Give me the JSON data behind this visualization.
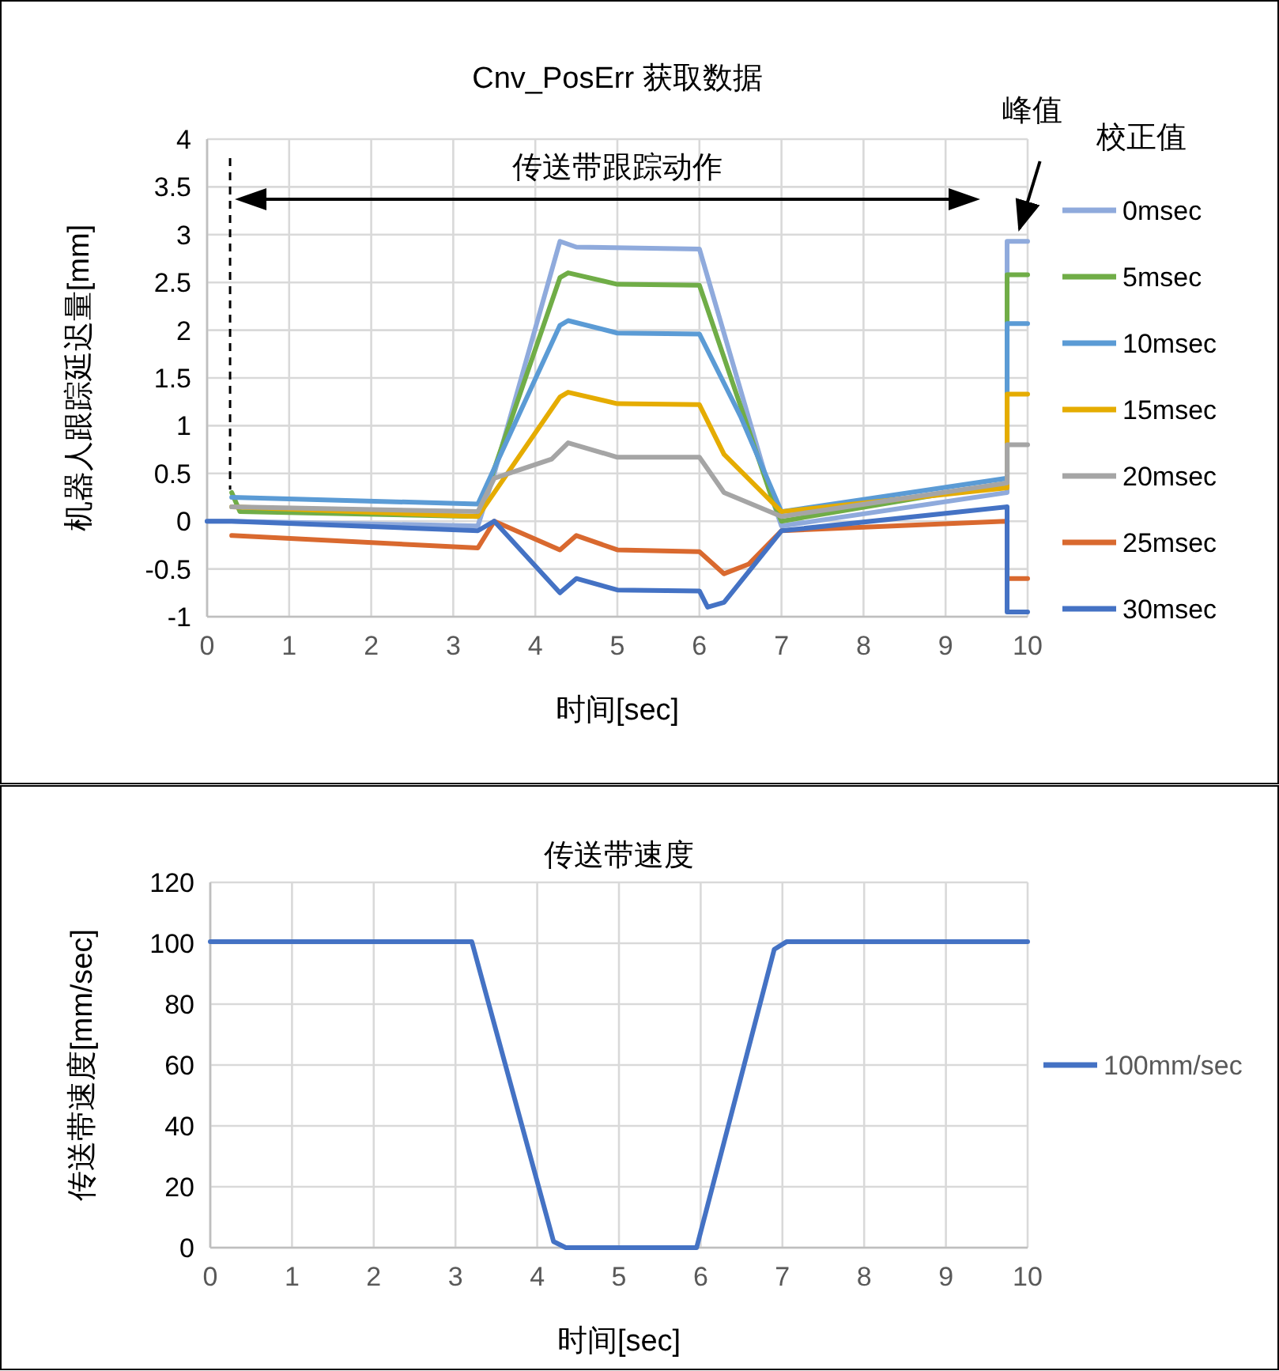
{
  "chart_data": [
    {
      "type": "line",
      "title": "Cnv_PosErr 获取数据",
      "xlabel": "时间[sec]",
      "ylabel": "机器人跟踪延迟量[mm]",
      "legend_title": "校正值",
      "legend": "right",
      "grid": true,
      "xlim": [
        0,
        10
      ],
      "xticks": [
        0,
        1,
        2,
        3,
        4,
        5,
        6,
        7,
        8,
        9,
        10
      ],
      "ylim": [
        -1,
        4
      ],
      "yticks": [
        -1,
        -0.5,
        0,
        0.5,
        1,
        1.5,
        2,
        2.5,
        3,
        3.5,
        4
      ],
      "annotations": [
        "传送带跟踪动作",
        {
          "text": "峰值",
          "x": 9.9,
          "y": 2.93
        }
      ],
      "ref_lines": [
        {
          "axis": "x",
          "value": 0.28,
          "color": "#000000",
          "line_style": "dashed"
        }
      ],
      "series": [
        {
          "name": "0msec",
          "color": "#8faadc",
          "x": [
            0,
            0.3,
            3.3,
            3.5,
            4.3,
            4.5,
            6,
            6.9,
            7,
            9.75,
            9.75,
            10
          ],
          "values": [
            0,
            0,
            -0.05,
            0.5,
            2.93,
            2.87,
            2.85,
            0.2,
            -0.05,
            0.3,
            2.93,
            2.93
          ]
        },
        {
          "name": "5msec",
          "color": "#70ad47",
          "x": [
            0.3,
            0.4,
            3.3,
            4.3,
            4.4,
            5,
            6,
            6.9,
            7,
            9.75,
            9.75,
            10
          ],
          "values": [
            0.3,
            0.1,
            0.05,
            2.55,
            2.6,
            2.48,
            2.47,
            0.2,
            0,
            0.4,
            2.58,
            2.58
          ]
        },
        {
          "name": "10msec",
          "color": "#5b9bd5",
          "x": [
            0.3,
            3.3,
            4.3,
            4.4,
            5,
            6,
            6.5,
            7,
            9.75,
            9.75,
            10
          ],
          "values": [
            0.25,
            0.18,
            2.05,
            2.1,
            1.97,
            1.96,
            1.1,
            0.1,
            0.45,
            2.07,
            2.07
          ]
        },
        {
          "name": "15msec",
          "color": "#e5ac00",
          "x": [
            0.3,
            3.3,
            4.3,
            4.4,
            5,
            6,
            6.3,
            7,
            9.75,
            9.75,
            10
          ],
          "values": [
            0.15,
            0.05,
            1.3,
            1.35,
            1.23,
            1.22,
            0.7,
            0.1,
            0.35,
            1.33,
            1.33
          ]
        },
        {
          "name": "20msec",
          "color": "#a5a5a5",
          "x": [
            0.3,
            3.3,
            3.5,
            4.2,
            4.4,
            5,
            6,
            6.3,
            7,
            9.75,
            9.75,
            10
          ],
          "values": [
            0.15,
            0.1,
            0.45,
            0.65,
            0.82,
            0.67,
            0.67,
            0.3,
            0.05,
            0.4,
            0.8,
            0.8
          ]
        },
        {
          "name": "25msec",
          "color": "#d9692f",
          "x": [
            0.3,
            3.3,
            3.5,
            4.3,
            4.5,
            5,
            6,
            6.3,
            6.6,
            7,
            9.75,
            9.75,
            10
          ],
          "values": [
            -0.15,
            -0.28,
            0,
            -0.3,
            -0.15,
            -0.3,
            -0.32,
            -0.55,
            -0.45,
            -0.1,
            0,
            -0.6,
            -0.6
          ]
        },
        {
          "name": "30msec",
          "color": "#4472c4",
          "x": [
            0,
            0.3,
            3.3,
            3.5,
            4.3,
            4.5,
            5,
            6,
            6.1,
            6.3,
            7,
            9.75,
            9.75,
            10
          ],
          "values": [
            0,
            0,
            -0.1,
            0,
            -0.75,
            -0.6,
            -0.72,
            -0.73,
            -0.9,
            -0.85,
            -0.1,
            0.15,
            -0.95,
            -0.95
          ]
        }
      ]
    },
    {
      "type": "line",
      "title": "传送带速度",
      "xlabel": "时间[sec]",
      "ylabel": "传送带速度[mm/sec]",
      "legend": "right",
      "grid": true,
      "xlim": [
        0,
        10
      ],
      "xticks": [
        0,
        1,
        2,
        3,
        4,
        5,
        6,
        7,
        8,
        9,
        10
      ],
      "ylim": [
        0,
        120
      ],
      "yticks": [
        0,
        20,
        40,
        60,
        80,
        100,
        120
      ],
      "series": [
        {
          "name": "100mm/sec",
          "color": "#4472c4",
          "x": [
            0,
            3.2,
            4.2,
            4.35,
            5.95,
            6.9,
            7.05,
            10
          ],
          "values": [
            100.5,
            100.5,
            2,
            0,
            0,
            98,
            100.5,
            100.5
          ]
        }
      ]
    }
  ]
}
